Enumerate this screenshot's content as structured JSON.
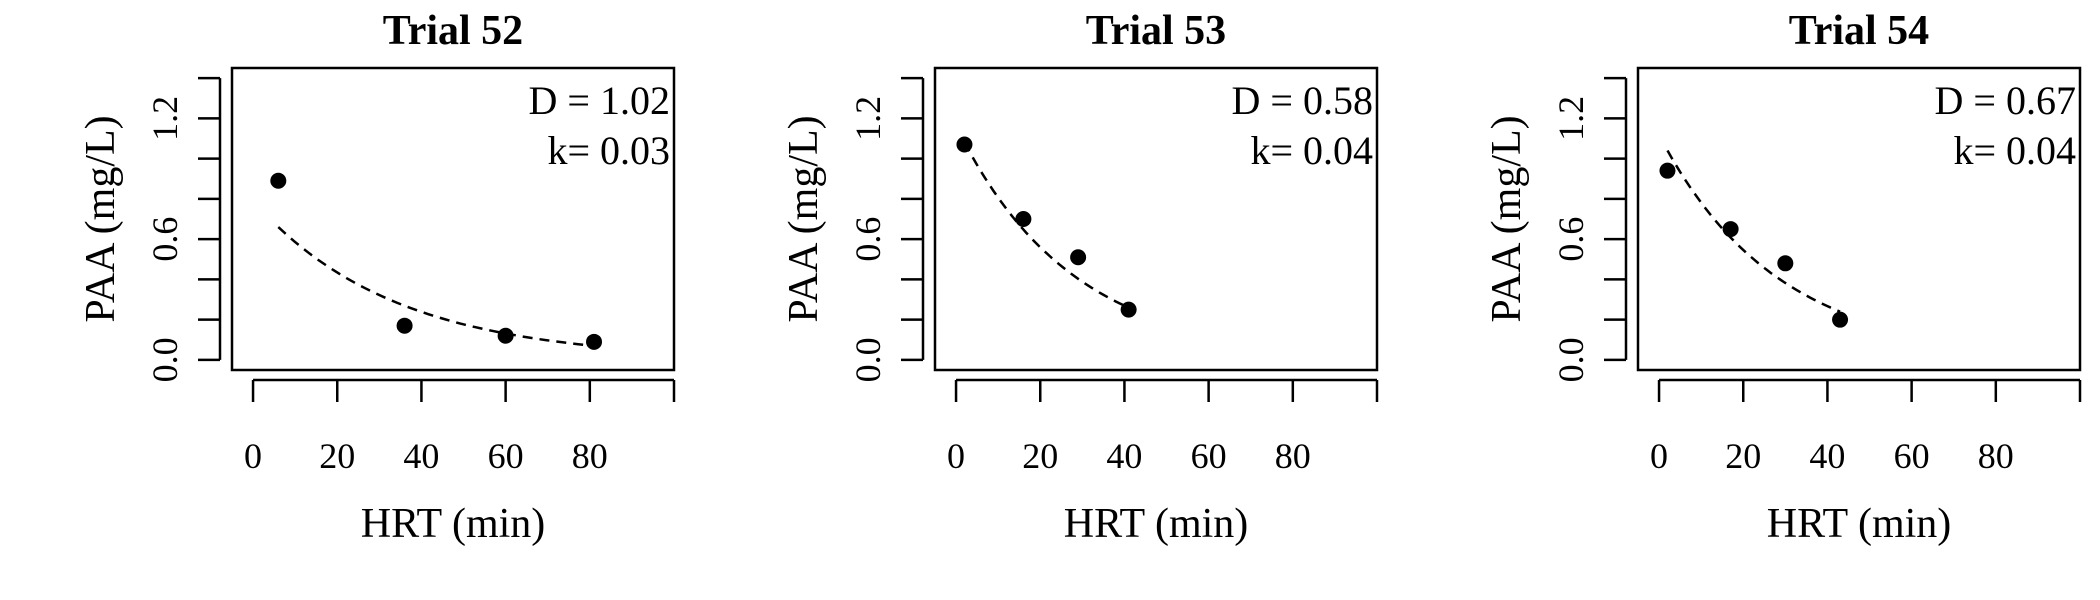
{
  "chart_data": [
    {
      "type": "scatter",
      "title": "Trial 52",
      "xlabel": "HRT (min)",
      "ylabel": "PAA (mg/L)",
      "xlim": [
        -5,
        100
      ],
      "ylim": [
        -0.05,
        1.45
      ],
      "xticks": [
        0,
        20,
        40,
        60,
        80
      ],
      "xtick_labels": [
        "0",
        "20",
        "40",
        "60",
        "80"
      ],
      "yticks": [
        0.0,
        0.6,
        1.2
      ],
      "ytick_labels": [
        "0.0",
        "0.6",
        "1.2"
      ],
      "annotations": [
        "D = 1.02",
        "k= 0.03"
      ],
      "points": {
        "x": [
          6,
          36,
          60,
          81
        ],
        "y": [
          0.89,
          0.17,
          0.12,
          0.09
        ]
      },
      "fit": {
        "x": [
          6,
          81
        ],
        "y": [
          0.66,
          0.07
        ]
      }
    },
    {
      "type": "scatter",
      "title": "Trial 53",
      "xlabel": "HRT (min)",
      "ylabel": "PAA (mg/L)",
      "xlim": [
        -5,
        100
      ],
      "ylim": [
        -0.05,
        1.45
      ],
      "xticks": [
        0,
        20,
        40,
        60,
        80
      ],
      "xtick_labels": [
        "0",
        "20",
        "40",
        "60",
        "80"
      ],
      "yticks": [
        0.0,
        0.6,
        1.2
      ],
      "ytick_labels": [
        "0.0",
        "0.6",
        "1.2"
      ],
      "annotations": [
        "D = 0.58",
        "k= 0.04"
      ],
      "points": {
        "x": [
          2,
          16,
          29,
          41
        ],
        "y": [
          1.07,
          0.7,
          0.51,
          0.25
        ]
      },
      "fit": {
        "x": [
          2,
          41
        ],
        "y": [
          1.08,
          0.26
        ]
      }
    },
    {
      "type": "scatter",
      "title": "Trial 54",
      "xlabel": "HRT (min)",
      "ylabel": "PAA (mg/L)",
      "xlim": [
        -5,
        100
      ],
      "ylim": [
        -0.05,
        1.45
      ],
      "xticks": [
        0,
        20,
        40,
        60,
        80
      ],
      "xtick_labels": [
        "0",
        "20",
        "40",
        "60",
        "80"
      ],
      "yticks": [
        0.0,
        0.6,
        1.2
      ],
      "ytick_labels": [
        "0.0",
        "0.6",
        "1.2"
      ],
      "annotations": [
        "D = 0.67",
        "k= 0.04"
      ],
      "points": {
        "x": [
          2,
          17,
          30,
          43
        ],
        "y": [
          0.94,
          0.65,
          0.48,
          0.2
        ]
      },
      "fit": {
        "x": [
          2,
          43
        ],
        "y": [
          1.04,
          0.24
        ]
      }
    }
  ]
}
